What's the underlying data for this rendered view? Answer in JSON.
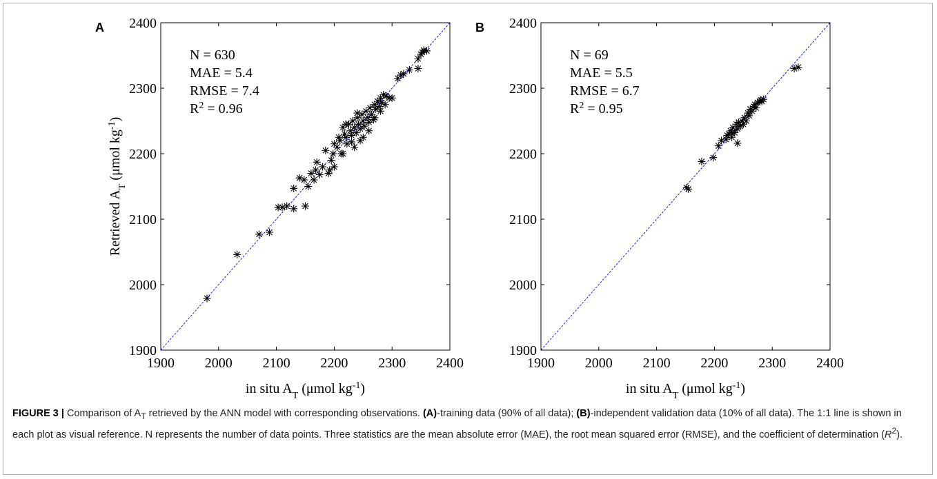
{
  "chart_data": [
    {
      "type": "scatter",
      "panel_label": "A",
      "color": "#000000",
      "identity_line": true,
      "identity_color": "#0000ff",
      "annotations": [
        [
          {
            "text": "N = 630"
          }
        ],
        [
          {
            "text": "MAE = 5.4"
          }
        ],
        [
          {
            "text": "RMSE = 7.4"
          }
        ],
        [
          {
            "text": "R"
          },
          {
            "text": "2",
            "shift": "sup"
          },
          {
            "text": " = 0.96"
          }
        ]
      ],
      "xlabel": [
        {
          "text": "in situ A"
        },
        {
          "text": "T",
          "shift": "sub"
        },
        {
          "text": " (μmol kg"
        },
        {
          "text": "-1",
          "shift": "sup"
        },
        {
          "text": ")"
        }
      ],
      "ylabel": [
        {
          "text": "Retrieved A"
        },
        {
          "text": "T",
          "shift": "sub"
        },
        {
          "text": " (μmol kg"
        },
        {
          "text": "-1",
          "shift": "sup"
        },
        {
          "text": ")"
        }
      ],
      "xlim": [
        1900,
        2400
      ],
      "ylim": [
        1900,
        2400
      ],
      "xticks": [
        1900,
        2000,
        2100,
        2200,
        2300,
        2400
      ],
      "yticks": [
        1900,
        2000,
        2100,
        2200,
        2300,
        2400
      ],
      "x": [
        1980,
        2032,
        2070,
        2088,
        2103,
        2110,
        2118,
        2130,
        2150,
        2130,
        2140,
        2148,
        2155,
        2160,
        2165,
        2170,
        2168,
        2175,
        2180,
        2185,
        2190,
        2192,
        2195,
        2198,
        2200,
        2205,
        2210,
        2212,
        2215,
        2218,
        2220,
        2222,
        2225,
        2228,
        2230,
        2232,
        2235,
        2238,
        2240,
        2242,
        2245,
        2248,
        2250,
        2252,
        2255,
        2258,
        2260,
        2262,
        2265,
        2268,
        2270,
        2272,
        2275,
        2278,
        2280,
        2282,
        2285,
        2288,
        2290,
        2295,
        2300,
        2310,
        2315,
        2320,
        2330,
        2345,
        2345,
        2350,
        2352,
        2355,
        2360,
        2235,
        2250,
        2260,
        2200,
        2215,
        2230,
        2270,
        2280,
        2245,
        2208,
        2220,
        2240
      ],
      "values": [
        1979,
        2046,
        2077,
        2080,
        2118,
        2118,
        2120,
        2116,
        2120,
        2147,
        2163,
        2160,
        2150,
        2170,
        2160,
        2187,
        2175,
        2168,
        2180,
        2205,
        2170,
        2175,
        2190,
        2200,
        2215,
        2210,
        2220,
        2200,
        2240,
        2230,
        2225,
        2215,
        2245,
        2235,
        2228,
        2250,
        2240,
        2232,
        2255,
        2245,
        2238,
        2260,
        2250,
        2242,
        2265,
        2255,
        2248,
        2270,
        2260,
        2252,
        2275,
        2268,
        2280,
        2272,
        2285,
        2278,
        2290,
        2275,
        2288,
        2285,
        2285,
        2315,
        2320,
        2322,
        2328,
        2330,
        2345,
        2352,
        2355,
        2358,
        2357,
        2210,
        2225,
        2235,
        2180,
        2200,
        2218,
        2255,
        2265,
        2220,
        2225,
        2245,
        2262
      ]
    },
    {
      "type": "scatter",
      "panel_label": "B",
      "color": "#000000",
      "identity_line": true,
      "identity_color": "#0000ff",
      "annotations": [
        [
          {
            "text": "N = 69"
          }
        ],
        [
          {
            "text": "MAE = 5.5"
          }
        ],
        [
          {
            "text": "RMSE = 6.7"
          }
        ],
        [
          {
            "text": "R"
          },
          {
            "text": "2",
            "shift": "sup"
          },
          {
            "text": " = 0.95"
          }
        ]
      ],
      "xlabel": [
        {
          "text": "in situ A"
        },
        {
          "text": "T",
          "shift": "sub"
        },
        {
          "text": " (μmol kg"
        },
        {
          "text": "-1",
          "shift": "sup"
        },
        {
          "text": ")"
        }
      ],
      "xlim": [
        1900,
        2400
      ],
      "ylim": [
        1900,
        2400
      ],
      "xticks": [
        1900,
        2000,
        2100,
        2200,
        2300,
        2400
      ],
      "yticks": [
        1900,
        2000,
        2100,
        2200,
        2300,
        2400
      ],
      "x": [
        2152,
        2155,
        2178,
        2198,
        2207,
        2212,
        2220,
        2225,
        2228,
        2230,
        2232,
        2235,
        2238,
        2240,
        2240,
        2242,
        2245,
        2248,
        2250,
        2252,
        2255,
        2258,
        2260,
        2262,
        2265,
        2268,
        2270,
        2272,
        2275,
        2278,
        2280,
        2282,
        2285,
        2338,
        2345,
        2230,
        2222
      ],
      "values": [
        2148,
        2146,
        2188,
        2194,
        2212,
        2220,
        2222,
        2230,
        2235,
        2225,
        2240,
        2232,
        2245,
        2216,
        2238,
        2248,
        2242,
        2250,
        2245,
        2255,
        2250,
        2262,
        2258,
        2268,
        2265,
        2272,
        2275,
        2270,
        2278,
        2280,
        2282,
        2280,
        2283,
        2330,
        2332,
        2232,
        2228
      ]
    }
  ],
  "caption": [
    {
      "text": "FIGURE 3 | ",
      "style": "bold"
    },
    {
      "text": "Comparison of A"
    },
    {
      "text": "T",
      "style": "sub"
    },
    {
      "text": " retrieved by the ANN model with corresponding observations. "
    },
    {
      "text": "(A)",
      "style": "bold"
    },
    {
      "text": "-training data (90% of all data); "
    },
    {
      "text": "(B)",
      "style": "bold"
    },
    {
      "text": "-independent validation data (10% of all data). The 1:1 line is shown in each plot as visual reference. N represents the number of data points. Three statistics are the mean absolute error (MAE), the root mean squared error (RMSE), and the coefficient of determination ("
    },
    {
      "text": "R",
      "style": "italic"
    },
    {
      "text": "2",
      "style": "sup"
    },
    {
      "text": ")."
    }
  ]
}
